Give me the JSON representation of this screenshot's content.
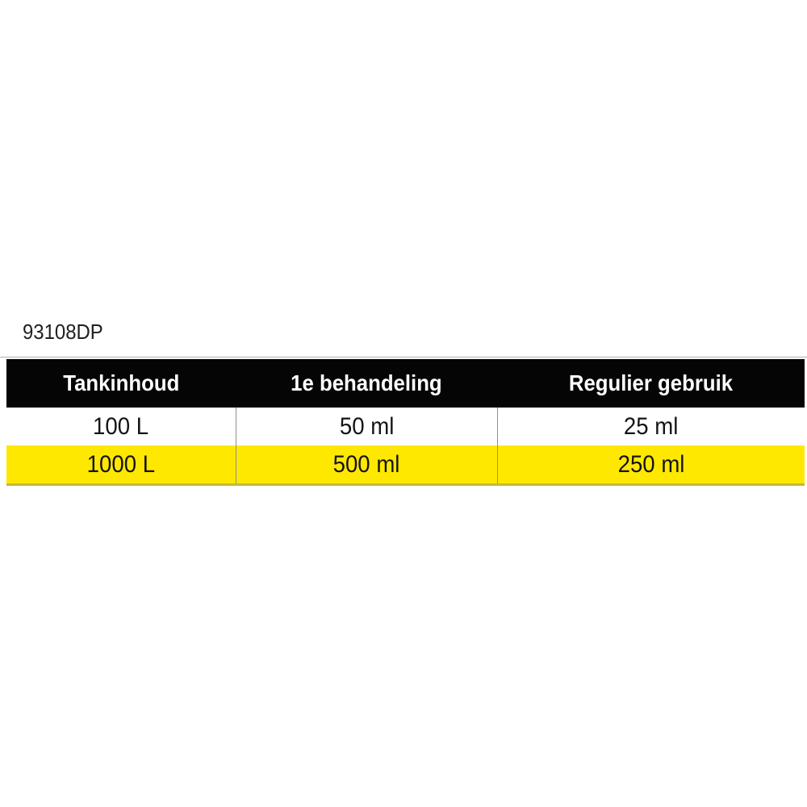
{
  "product_code": "93108DP",
  "table": {
    "columns": [
      {
        "label": "Tankinhoud"
      },
      {
        "label": "1e behandeling"
      },
      {
        "label": "Regulier gebruik"
      }
    ],
    "rows": [
      {
        "highlight": false,
        "cells": [
          "100 L",
          "50 ml",
          "25 ml"
        ]
      },
      {
        "highlight": true,
        "cells": [
          "1000 L",
          "500 ml",
          "250 ml"
        ]
      }
    ]
  },
  "colors": {
    "header_bg": "#050505",
    "header_text": "#ffffff",
    "highlight_row_bg": "#ffe800",
    "highlight_row_bottom_border": "#c6ba33",
    "column_separator": "#8f8f8f",
    "rule_line": "#b2b2b2",
    "body_text": "#141414",
    "page_bg": "#ffffff"
  }
}
